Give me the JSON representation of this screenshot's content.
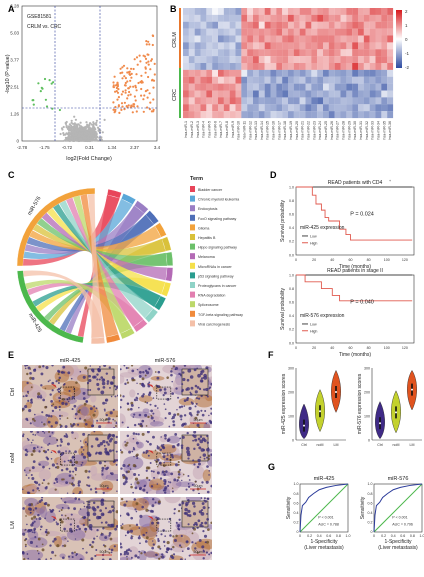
{
  "panel_letters": [
    "A",
    "B",
    "C",
    "D",
    "E",
    "F",
    "G"
  ],
  "panelA": {
    "dataset": "GSE81581",
    "comparison": "CRLM vs. CRC",
    "xlabel": "log2(Fold Change)",
    "ylabel": "-log10 (P-value)",
    "x_ticks": [
      "-2.78",
      "-1.75",
      "-0.72",
      "0.31",
      "1.34",
      "2.37",
      "3.4"
    ],
    "y_ticks": [
      "0",
      "1.26",
      "2.51",
      "3.77",
      "5.03",
      "6.28"
    ],
    "colors": {
      "down": "#5fbf5f",
      "ns": "#b5b5b5",
      "up": "#f08a4b",
      "threshold": "#2b3b9a"
    }
  },
  "panelB": {
    "row_groups": [
      "CRLM",
      "CRC"
    ],
    "legend_ticks": [
      "2",
      "1",
      "0",
      "-1",
      "-2"
    ],
    "gene_labels": [
      "hsa-miR-1",
      "hsa-miR-2",
      "hsa-miR-3",
      "hsa-miR-4",
      "hsa-miR-5",
      "hsa-miR-6",
      "hsa-miR-7",
      "hsa-miR-8",
      "hsa-miR-9",
      "hsa-miR-10",
      "hsa-miR-11",
      "hsa-miR-12",
      "hsa-miR-13",
      "hsa-miR-14",
      "hsa-miR-15",
      "hsa-miR-16",
      "hsa-miR-17",
      "hsa-miR-18",
      "hsa-miR-19",
      "hsa-miR-20",
      "hsa-miR-21",
      "hsa-miR-22",
      "hsa-miR-23",
      "hsa-miR-24",
      "hsa-miR-25",
      "hsa-miR-26",
      "hsa-miR-27",
      "hsa-miR-28",
      "hsa-miR-29",
      "hsa-miR-30",
      "hsa-miR-31",
      "hsa-miR-32",
      "hsa-miR-33",
      "hsa-miR-34",
      "hsa-miR-35",
      "hsa-miR-36"
    ]
  },
  "panelC": {
    "legend_title": "Term",
    "left_labels": [
      "miR-576",
      "miR-425"
    ],
    "terms": [
      {
        "name": "Bladder cancer",
        "color": "#e8455a",
        "highlight": false
      },
      {
        "name": "Chronic myeloid leukemia",
        "color": "#5aa7d8",
        "highlight": false
      },
      {
        "name": "Endocytosis",
        "color": "#9a7ec4",
        "highlight": false
      },
      {
        "name": "FoxO signaling pathway",
        "color": "#4f6fb8",
        "highlight": false
      },
      {
        "name": "Glioma",
        "color": "#f2a23b",
        "highlight": false
      },
      {
        "name": "Hepatitis B",
        "color": "#d9c13a",
        "highlight": false
      },
      {
        "name": "Hippo signaling pathway",
        "color": "#6cc06a",
        "highlight": false
      },
      {
        "name": "Melanoma",
        "color": "#b36ab5",
        "highlight": false
      },
      {
        "name": "MicroRNAs in cancer",
        "color": "#f5e04a",
        "highlight": false
      },
      {
        "name": "p53 signaling pathway",
        "color": "#2a9d8f",
        "highlight": true
      },
      {
        "name": "Proteoglycans in cancer",
        "color": "#8fd3c7",
        "highlight": false
      },
      {
        "name": "RNA degradation",
        "color": "#e27fb0",
        "highlight": false
      },
      {
        "name": "Spliceosome",
        "color": "#bcd86a",
        "highlight": false
      },
      {
        "name": "TGF-beta signaling pathway",
        "color": "#f08a3b",
        "highlight": true
      },
      {
        "name": "Viral carcinogenesis",
        "color": "#f4c0a8",
        "highlight": false
      }
    ]
  },
  "panelD": {
    "plots": [
      {
        "title": "READ patients with CD4",
        "title_sup": "+",
        "p": "P = 0.024",
        "mirna": "miR-425 expression",
        "legend": [
          "Low",
          "High"
        ]
      },
      {
        "title": "READ patients in stage II",
        "title_sup": "",
        "p": "P = 0.040",
        "mirna": "miR-576 expression",
        "legend": [
          "Low",
          "High"
        ]
      }
    ],
    "ylabel": "Survival probability",
    "xlabel": "Time (months)",
    "x_ticks": [
      "0",
      "20",
      "40",
      "60",
      "80",
      "100",
      "120"
    ],
    "y_ticks": [
      "0.0",
      "0.2",
      "0.4",
      "0.6",
      "0.8",
      "1.0"
    ],
    "colors": {
      "low": "#444444",
      "high": "#e05a4f"
    }
  },
  "panelE": {
    "col_titles": [
      "miR-425",
      "miR-576"
    ],
    "row_labels": [
      "Ctrl",
      "noM",
      "LM"
    ],
    "scale": "50µm"
  },
  "panelF": {
    "plots": [
      {
        "ylabel": "miR-425 expression scores",
        "groups": [
          "Ctrl",
          "noM",
          "LM"
        ]
      },
      {
        "ylabel": "miR-576 expression scores",
        "groups": [
          "Ctrl",
          "noM",
          "LM"
        ]
      }
    ],
    "y_ticks": [
      "0",
      "100",
      "200",
      "300"
    ],
    "colors": [
      "#3f2a86",
      "#c3d12d",
      "#e0531f"
    ],
    "chart_data": [
      {
        "type": "violin",
        "categories": [
          "Ctrl",
          "noM",
          "LM"
        ],
        "medians": [
          60,
          120,
          200
        ],
        "ylim": [
          0,
          300
        ]
      },
      {
        "type": "violin",
        "categories": [
          "Ctrl",
          "noM",
          "LM"
        ],
        "medians": [
          70,
          115,
          210
        ],
        "ylim": [
          0,
          300
        ]
      }
    ]
  },
  "panelG": {
    "plots": [
      {
        "title": "miR-425",
        "p": "P < 0.001",
        "auc": "AUC = 0.788"
      },
      {
        "title": "miR-576",
        "p": "P < 0.001",
        "auc": "AUC = 0.796"
      }
    ],
    "ylabel": "Sensitivity",
    "xlabel": "1-Specificity",
    "xlabel2": "(Liver metastasis)",
    "ticks": [
      "0",
      "0.2",
      "0.4",
      "0.6",
      "0.8",
      "1.0"
    ],
    "colors": {
      "roc": "#2b3b9a",
      "ref": "#4cb84c"
    }
  }
}
